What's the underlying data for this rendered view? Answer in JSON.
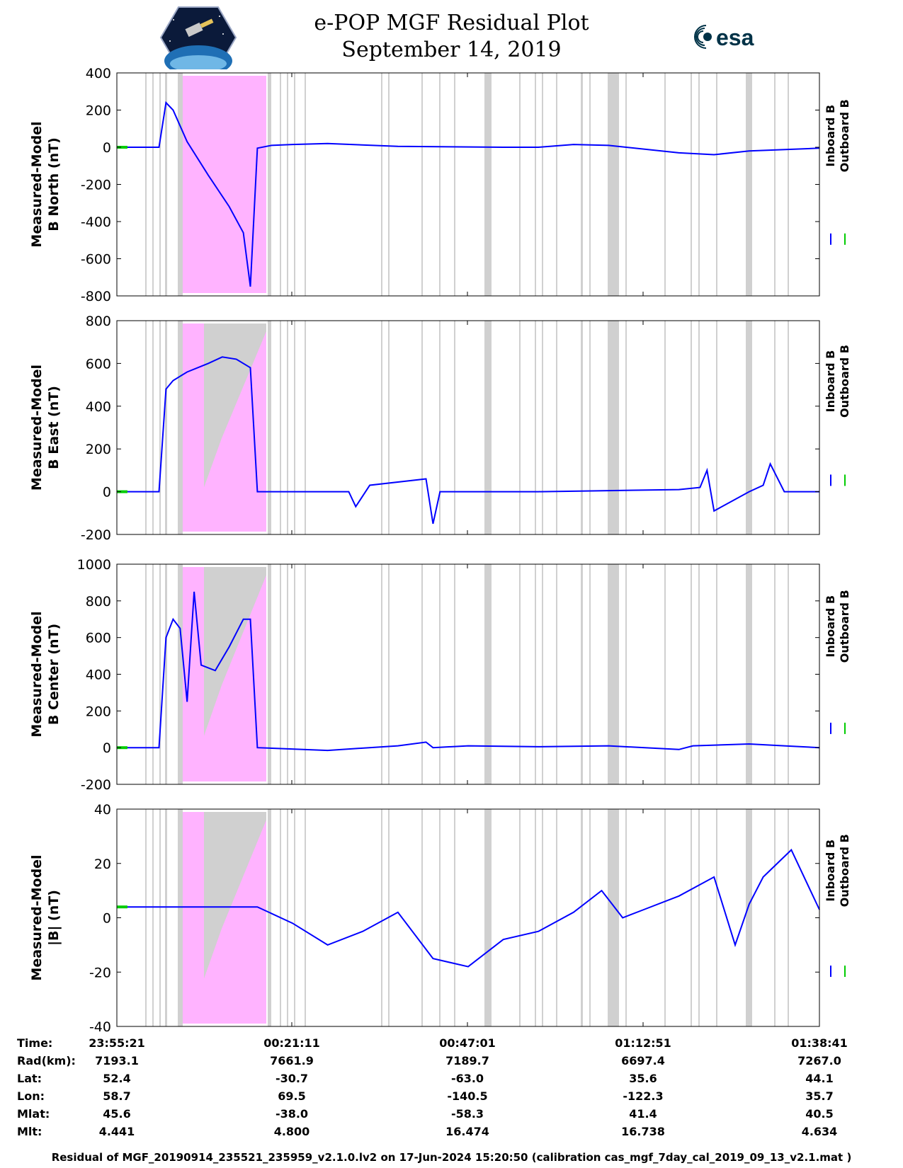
{
  "header": {
    "title_line1": "e-POP MGF Residual Plot",
    "title_line2": "September 14, 2019",
    "left_logo": "cassiope-mission-logo",
    "right_logo_text": "esa",
    "right_logo_color": "#003247"
  },
  "colors": {
    "inboard": "#0000ff",
    "outboard": "#00cc00",
    "highlight_pink": "#ffb3ff",
    "gap_gray": "#d0d0d0"
  },
  "legend": {
    "inboard": "Inboard B",
    "outboard": "Outboard B"
  },
  "chart_data": [
    {
      "type": "line",
      "ylabel_line1": "Measured-Model",
      "ylabel_line2": "B North (nT)",
      "ylim": [
        -800,
        400
      ],
      "yticks": [
        400,
        200,
        0,
        -200,
        -400,
        -600,
        -800
      ],
      "series": [
        {
          "name": "Inboard B",
          "x": [
            0,
            3,
            6,
            7,
            8,
            10,
            13,
            16,
            18,
            19,
            20,
            22,
            25,
            30,
            40,
            55,
            60,
            65,
            70,
            80,
            85,
            90,
            100
          ],
          "y": [
            0,
            0,
            0,
            240,
            200,
            30,
            -150,
            -320,
            -460,
            -750,
            -5,
            10,
            15,
            20,
            5,
            0,
            0,
            15,
            10,
            -30,
            -40,
            -20,
            -5
          ]
        },
        {
          "name": "Outboard B",
          "x": [
            0,
            1.5
          ],
          "y": [
            0,
            0
          ]
        }
      ]
    },
    {
      "type": "line",
      "ylabel_line1": "Measured-Model",
      "ylabel_line2": "B East (nT)",
      "ylim": [
        -200,
        800
      ],
      "yticks": [
        800,
        600,
        400,
        200,
        0,
        -200
      ],
      "series": [
        {
          "name": "Inboard B",
          "x": [
            0,
            6,
            7,
            8,
            10,
            13,
            15,
            17,
            19,
            20,
            25,
            33,
            34,
            36,
            44,
            45,
            46,
            50,
            60,
            70,
            80,
            83,
            84,
            85,
            90,
            92,
            93,
            95,
            100
          ],
          "y": [
            0,
            0,
            480,
            520,
            560,
            600,
            630,
            620,
            580,
            0,
            0,
            0,
            -70,
            30,
            60,
            -150,
            0,
            0,
            0,
            5,
            10,
            20,
            100,
            -90,
            0,
            30,
            130,
            0,
            0
          ]
        },
        {
          "name": "Outboard B",
          "x": [
            0,
            1.5
          ],
          "y": [
            0,
            0
          ]
        }
      ]
    },
    {
      "type": "line",
      "ylabel_line1": "Measured-Model",
      "ylabel_line2": "B Center (nT)",
      "ylim": [
        -200,
        1000
      ],
      "yticks": [
        1000,
        800,
        600,
        400,
        200,
        0,
        -200
      ],
      "series": [
        {
          "name": "Inboard B",
          "x": [
            0,
            6,
            7,
            8,
            9,
            10,
            11,
            12,
            14,
            16,
            18,
            19,
            20,
            30,
            40,
            44,
            45,
            50,
            60,
            70,
            80,
            82,
            90,
            95,
            100
          ],
          "y": [
            0,
            0,
            600,
            700,
            650,
            250,
            850,
            450,
            420,
            550,
            700,
            700,
            0,
            -15,
            10,
            30,
            0,
            10,
            5,
            10,
            -10,
            10,
            20,
            10,
            0
          ]
        },
        {
          "name": "Outboard B",
          "x": [
            0,
            1.5
          ],
          "y": [
            0,
            0
          ]
        }
      ]
    },
    {
      "type": "line",
      "ylabel_line1": "Measured-Model",
      "ylabel_line2": "|B| (nT)",
      "ylim": [
        -40,
        40
      ],
      "yticks": [
        40,
        20,
        0,
        -20,
        -40
      ],
      "series": [
        {
          "name": "Inboard B",
          "x": [
            0,
            10,
            20,
            25,
            30,
            35,
            40,
            45,
            50,
            55,
            60,
            65,
            69,
            72,
            75,
            80,
            85,
            88,
            90,
            92,
            96,
            100
          ],
          "y": [
            4,
            4,
            4,
            -2,
            -10,
            -5,
            2,
            -15,
            -18,
            -8,
            -5,
            2,
            10,
            0,
            3,
            8,
            15,
            -10,
            5,
            15,
            25,
            3
          ]
        },
        {
          "name": "Outboard B",
          "x": [
            0,
            1.5
          ],
          "y": [
            4,
            4
          ]
        }
      ]
    }
  ],
  "info_table": {
    "row_labels": [
      "Time:",
      "Rad(km):",
      "Lat:",
      "Lon:",
      "Mlat:",
      "Mlt:"
    ],
    "columns": [
      [
        "23:55:21",
        "7193.1",
        "52.4",
        "58.7",
        "45.6",
        "4.441"
      ],
      [
        "00:21:11",
        "7661.9",
        "-30.7",
        "69.5",
        "-38.0",
        "4.800"
      ],
      [
        "00:47:01",
        "7189.7",
        "-63.0",
        "-140.5",
        "-58.3",
        "16.474"
      ],
      [
        "01:12:51",
        "6697.4",
        "35.6",
        "-122.3",
        "41.4",
        "16.738"
      ],
      [
        "01:38:41",
        "7267.0",
        "44.1",
        "35.7",
        "40.5",
        "4.634"
      ]
    ]
  },
  "footer": "Residual of MGF_20190914_235521_235959_v2.1.0.lv2 on 17-Jun-2024 15:20:50 (calibration cas_mgf_7day_cal_2019_09_13_v2.1.mat )"
}
